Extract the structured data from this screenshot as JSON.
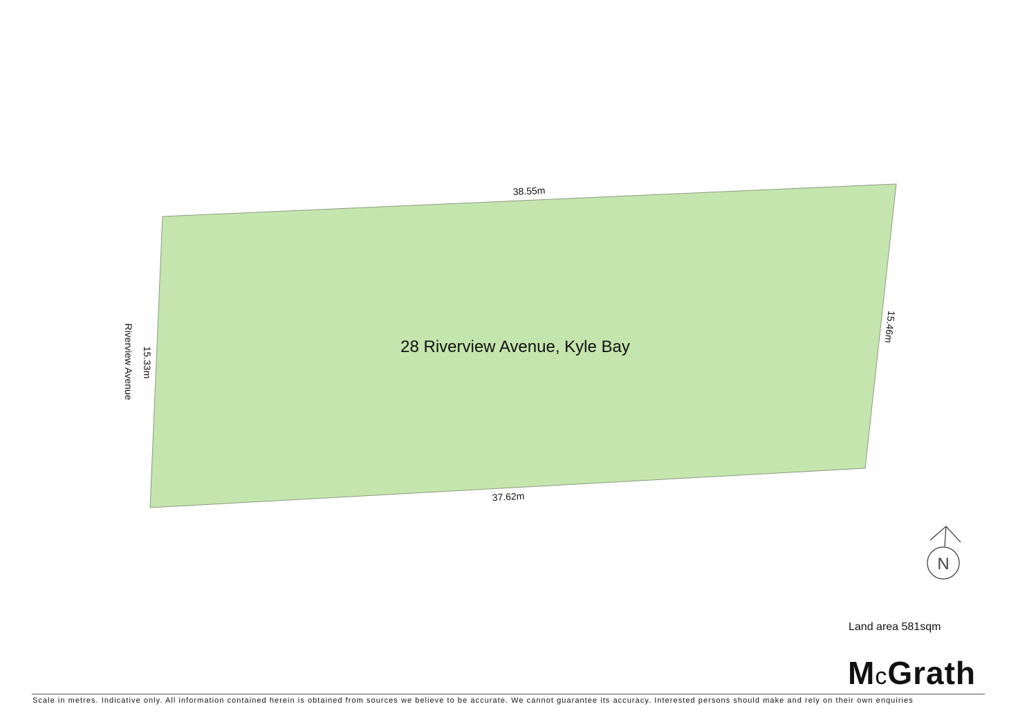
{
  "plan": {
    "address": "28 Riverview Avenue, Kyle Bay",
    "fill_color": "#c5e5ae",
    "dimensions": {
      "top": "38.55m",
      "right": "15.46m",
      "bottom": "37.62m",
      "left": "15.33m"
    },
    "street": "Riverview Avenue"
  },
  "compass": {
    "label": "N",
    "icon": "north-arrow-icon"
  },
  "land_area": "Land area 581sqm",
  "logo": {
    "text_main": "M",
    "text_small": "c",
    "text_rest": "Grath"
  },
  "disclaimer": "Scale in metres. Indicative only. All information contained herein is obtained from sources we believe to be accurate. We cannot guarantee its accuracy. Interested persons should make and rely on their own enquiries"
}
